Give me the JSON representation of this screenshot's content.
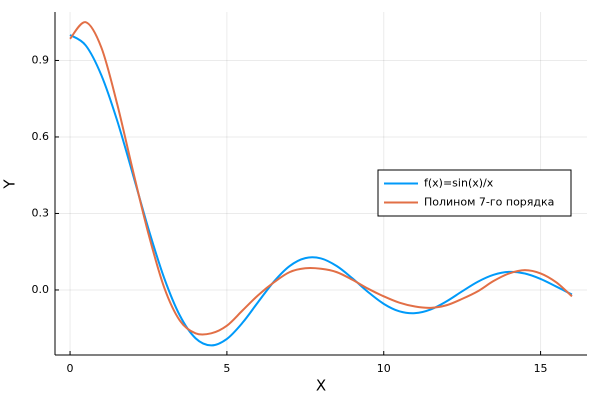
{
  "chart_data": {
    "type": "line",
    "xlabel": "X",
    "ylabel": "Y",
    "x": [
      0,
      0.5,
      1,
      1.5,
      2,
      2.5,
      3,
      3.5,
      4,
      4.5,
      5,
      5.5,
      6,
      6.5,
      7,
      7.5,
      8,
      8.5,
      9,
      9.5,
      10,
      10.5,
      11,
      11.5,
      12,
      12.5,
      13,
      13.5,
      14,
      14.5,
      15,
      15.5,
      16
    ],
    "series": [
      {
        "name": "f(x)=sin(x)/x",
        "color": "#009af9",
        "values": [
          1,
          0.9589,
          0.8415,
          0.665,
          0.4546,
          0.2394,
          0.047,
          -0.1002,
          -0.1892,
          -0.2172,
          -0.1918,
          -0.1282,
          -0.0466,
          0.0331,
          0.0939,
          0.125,
          0.1237,
          0.0939,
          0.0458,
          -0.0079,
          -0.0544,
          -0.0838,
          -0.0909,
          -0.0762,
          -0.0447,
          -0.0053,
          0.0323,
          0.0594,
          0.071,
          0.0645,
          0.0433,
          0.0133,
          -0.018
        ]
      },
      {
        "name": "Полином 7-го порядка",
        "color": "#e26f46",
        "values": [
          0.985,
          1.05,
          0.95,
          0.73,
          0.47,
          0.22,
          0.01,
          -0.12,
          -0.17,
          -0.17,
          -0.14,
          -0.08,
          -0.02,
          0.03,
          0.07,
          0.085,
          0.083,
          0.07,
          0.04,
          0.005,
          -0.025,
          -0.05,
          -0.065,
          -0.07,
          -0.06,
          -0.035,
          -0.005,
          0.035,
          0.065,
          0.078,
          0.065,
          0.03,
          -0.025
        ]
      }
    ],
    "xlim": [
      -0.48,
      16.48
    ],
    "ylim": [
      -0.255,
      1.09
    ],
    "xticks": [
      0,
      5,
      10,
      15
    ],
    "yticks": [
      {
        "value": 0,
        "label": "0.0"
      },
      0.3,
      0.6,
      0.9
    ],
    "grid": true,
    "legend": "right"
  }
}
